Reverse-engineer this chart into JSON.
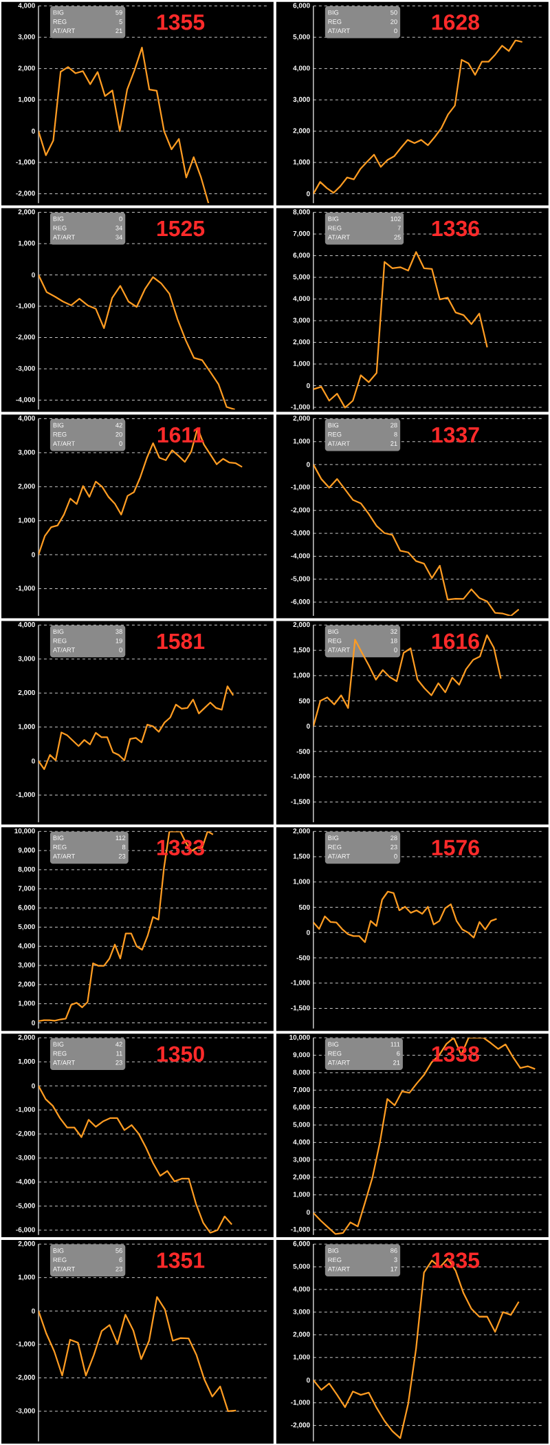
{
  "chart_data": [
    {
      "type": "line",
      "title": "1355",
      "annotations": [
        "BIG",
        "59",
        "REG",
        "5",
        "AT/ART",
        "21"
      ],
      "color": "#ff9c22",
      "grid": "y",
      "tick_labels": "y",
      "ylim": [
        -2300,
        4000
      ],
      "yticks": [
        {
          "value": -2000,
          "label": "-2,000"
        },
        {
          "value": -1000,
          "label": "-1,000"
        },
        {
          "value": 0,
          "label": "0"
        },
        {
          "value": 1000,
          "label": "1,000"
        },
        {
          "value": 2000,
          "label": "2,000"
        },
        {
          "value": 3000,
          "label": "3,000"
        },
        {
          "value": 4000,
          "label": "4,000"
        }
      ],
      "categories": [
        null,
        null,
        null,
        null,
        null,
        null,
        null,
        null,
        null,
        null,
        null,
        null,
        null,
        null,
        null,
        null,
        null,
        null,
        null,
        null,
        null,
        null,
        null,
        null,
        null,
        null,
        null,
        null,
        null,
        null,
        null,
        null
      ],
      "values": [
        0,
        -770,
        -300,
        1900,
        2050,
        1850,
        1920,
        1500,
        1890,
        1120,
        1300,
        0,
        1330,
        1950,
        2670,
        1330,
        1290,
        0,
        -580,
        -250,
        -1480,
        -830,
        -1480,
        -2300,
        null,
        null,
        null,
        null,
        null,
        null,
        null,
        null
      ]
    },
    {
      "type": "line",
      "title": "1628",
      "annotations": [
        "BIG",
        "50",
        "REG",
        "20",
        "AT/ART",
        "0"
      ],
      "color": "#ff9c22",
      "grid": "y",
      "tick_labels": "y",
      "ylim": [
        -300,
        6000
      ],
      "yticks": [
        {
          "value": 0,
          "label": "0"
        },
        {
          "value": 1000,
          "label": "1,000"
        },
        {
          "value": 2000,
          "label": "2,000"
        },
        {
          "value": 3000,
          "label": "3,000"
        },
        {
          "value": 4000,
          "label": "4,000"
        },
        {
          "value": 5000,
          "label": "5,000"
        },
        {
          "value": 6000,
          "label": "6,000"
        }
      ],
      "categories": [
        null,
        null,
        null,
        null,
        null,
        null,
        null,
        null,
        null,
        null,
        null,
        null,
        null,
        null,
        null,
        null,
        null,
        null,
        null,
        null,
        null,
        null,
        null,
        null,
        null,
        null,
        null,
        null,
        null,
        null,
        null,
        null,
        null,
        null,
        null
      ],
      "values": [
        0,
        380,
        180,
        30,
        240,
        520,
        460,
        800,
        1030,
        1250,
        860,
        1080,
        1200,
        1470,
        1720,
        1620,
        1720,
        1550,
        1810,
        2100,
        2540,
        2820,
        4280,
        4170,
        3800,
        4220,
        4220,
        4450,
        4730,
        4560,
        4900,
        4850,
        null,
        null,
        null
      ]
    },
    {
      "type": "line",
      "title": "1525",
      "annotations": [
        "BIG",
        "0",
        "REG",
        "34",
        "AT/ART",
        "34"
      ],
      "color": "#ff9c22",
      "grid": "y",
      "tick_labels": "y",
      "ylim": [
        -4300,
        2000
      ],
      "yticks": [
        {
          "value": -4000,
          "label": "-4,000"
        },
        {
          "value": -3000,
          "label": "-3,000"
        },
        {
          "value": -2000,
          "label": "-2,000"
        },
        {
          "value": -1000,
          "label": "-1,000"
        },
        {
          "value": 0,
          "label": "0"
        },
        {
          "value": 1000,
          "label": "1,000"
        },
        {
          "value": 2000,
          "label": "2,000"
        }
      ],
      "categories": [
        null,
        null,
        null,
        null,
        null,
        null,
        null,
        null,
        null,
        null,
        null,
        null,
        null,
        null,
        null,
        null,
        null,
        null,
        null,
        null,
        null,
        null,
        null,
        null,
        null,
        null,
        null,
        null,
        null
      ],
      "values": [
        0,
        -550,
        -690,
        -850,
        -970,
        -760,
        -970,
        -1080,
        -1700,
        -740,
        -350,
        -850,
        -1020,
        -460,
        -70,
        -270,
        -600,
        -1420,
        -2090,
        -2650,
        -2720,
        -3100,
        -3490,
        -4220,
        -4300,
        null,
        null,
        null,
        null
      ]
    },
    {
      "type": "line",
      "title": "1336",
      "annotations": [
        "BIG",
        "102",
        "REG",
        "7",
        "AT/ART",
        "25"
      ],
      "color": "#ff9c22",
      "grid": "y",
      "tick_labels": "y",
      "ylim": [
        -1100,
        8000
      ],
      "yticks": [
        {
          "value": -1000,
          "label": "-1,000"
        },
        {
          "value": 0,
          "label": "0"
        },
        {
          "value": 1000,
          "label": "1,000"
        },
        {
          "value": 2000,
          "label": "2,000"
        },
        {
          "value": 3000,
          "label": "3,000"
        },
        {
          "value": 4000,
          "label": "4,000"
        },
        {
          "value": 5000,
          "label": "5,000"
        },
        {
          "value": 6000,
          "label": "6,000"
        },
        {
          "value": 7000,
          "label": "7,000"
        },
        {
          "value": 8000,
          "label": "8,000"
        }
      ],
      "categories": [
        null,
        null,
        null,
        null,
        null,
        null,
        null,
        null,
        null,
        null,
        null,
        null,
        null,
        null,
        null,
        null,
        null,
        null,
        null,
        null,
        null,
        null,
        null,
        null,
        null,
        null,
        null,
        null,
        null,
        null
      ],
      "values": [
        -160,
        -50,
        -690,
        -370,
        -1010,
        -690,
        480,
        160,
        590,
        5710,
        5420,
        5470,
        5310,
        6170,
        5420,
        5390,
        3980,
        4060,
        3380,
        3260,
        2840,
        3330,
        1770,
        null,
        null,
        null,
        null,
        null,
        null,
        null
      ]
    },
    {
      "type": "line",
      "title": "1611",
      "annotations": [
        "BIG",
        "42",
        "REG",
        "20",
        "AT/ART",
        "0"
      ],
      "color": "#ff9c22",
      "grid": "y",
      "tick_labels": "y",
      "ylim": [
        -1800,
        4000
      ],
      "yticks": [
        {
          "value": -1000,
          "label": "-1,000"
        },
        {
          "value": 0,
          "label": "0"
        },
        {
          "value": 1000,
          "label": "1,000"
        },
        {
          "value": 2000,
          "label": "2,000"
        },
        {
          "value": 3000,
          "label": "3,000"
        },
        {
          "value": 4000,
          "label": "4,000"
        }
      ],
      "categories": [
        null,
        null,
        null,
        null,
        null,
        null,
        null,
        null,
        null,
        null,
        null,
        null,
        null,
        null,
        null,
        null,
        null,
        null,
        null,
        null,
        null,
        null,
        null,
        null,
        null,
        null,
        null,
        null,
        null,
        null,
        null,
        null,
        null,
        null,
        null,
        null,
        null
      ],
      "values": [
        0,
        550,
        810,
        860,
        1180,
        1650,
        1490,
        2020,
        1700,
        2150,
        2000,
        1700,
        1500,
        1180,
        1730,
        1840,
        2280,
        2830,
        3280,
        2850,
        2780,
        3070,
        2910,
        2730,
        3030,
        3720,
        3240,
        2950,
        2660,
        2820,
        2710,
        2690,
        2580,
        null,
        null,
        null,
        null
      ]
    },
    {
      "type": "line",
      "title": "1337",
      "annotations": [
        "BIG",
        "28",
        "REG",
        "8",
        "AT/ART",
        "21"
      ],
      "color": "#ff9c22",
      "grid": "y",
      "tick_labels": "y",
      "ylim": [
        -6600,
        2000
      ],
      "yticks": [
        {
          "value": -6000,
          "label": "-6,000"
        },
        {
          "value": -5000,
          "label": "-5,000"
        },
        {
          "value": -4000,
          "label": "-4,000"
        },
        {
          "value": -3000,
          "label": "-3,000"
        },
        {
          "value": -2000,
          "label": "-2,000"
        },
        {
          "value": -1000,
          "label": "-1,000"
        },
        {
          "value": 0,
          "label": "0"
        },
        {
          "value": 1000,
          "label": "1,000"
        },
        {
          "value": 2000,
          "label": "2,000"
        }
      ],
      "categories": [
        null,
        null,
        null,
        null,
        null,
        null,
        null,
        null,
        null,
        null,
        null,
        null,
        null,
        null,
        null,
        null,
        null,
        null,
        null,
        null,
        null,
        null,
        null,
        null,
        null,
        null,
        null,
        null,
        null,
        null
      ],
      "values": [
        0,
        -630,
        -1010,
        -630,
        -1080,
        -1540,
        -1690,
        -2150,
        -2680,
        -2990,
        -3070,
        -3760,
        -3830,
        -4210,
        -4320,
        -4950,
        -4410,
        -5890,
        -5850,
        -5860,
        -5440,
        -5820,
        -5970,
        -6470,
        -6500,
        -6600,
        -6320,
        null,
        null,
        null
      ]
    },
    {
      "type": "line",
      "title": "1581",
      "annotations": [
        "BIG",
        "38",
        "REG",
        "19",
        "AT/ART",
        "0"
      ],
      "color": "#ff9c22",
      "grid": "y",
      "tick_labels": "y",
      "ylim": [
        -1800,
        4000
      ],
      "yticks": [
        {
          "value": -1000,
          "label": "-1,000"
        },
        {
          "value": 0,
          "label": "0"
        },
        {
          "value": 1000,
          "label": "1,000"
        },
        {
          "value": 2000,
          "label": "2,000"
        },
        {
          "value": 3000,
          "label": "3,000"
        },
        {
          "value": 4000,
          "label": "4,000"
        }
      ],
      "categories": [
        null,
        null,
        null,
        null,
        null,
        null,
        null,
        null,
        null,
        null,
        null,
        null,
        null,
        null,
        null,
        null,
        null,
        null,
        null,
        null,
        null,
        null,
        null,
        null,
        null,
        null,
        null,
        null,
        null,
        null,
        null,
        null,
        null,
        null,
        null,
        null,
        null,
        null,
        null,
        null,
        null
      ],
      "values": [
        0,
        -240,
        180,
        20,
        840,
        760,
        600,
        440,
        620,
        490,
        830,
        700,
        700,
        260,
        180,
        20,
        650,
        680,
        550,
        1070,
        1020,
        860,
        1130,
        1280,
        1660,
        1540,
        1560,
        1810,
        1400,
        1560,
        1720,
        1560,
        1510,
        2200,
        1930,
        null,
        null,
        null,
        null,
        null,
        null
      ]
    },
    {
      "type": "line",
      "title": "1616",
      "annotations": [
        "BIG",
        "32",
        "REG",
        "18",
        "AT/ART",
        "0"
      ],
      "color": "#ff9c22",
      "grid": "y",
      "tick_labels": "y",
      "ylim": [
        -1900,
        2000
      ],
      "yticks": [
        {
          "value": -1500,
          "label": "-1,500"
        },
        {
          "value": -1000,
          "label": "-1,000"
        },
        {
          "value": -500,
          "label": "-500"
        },
        {
          "value": 0,
          "label": "0"
        },
        {
          "value": 500,
          "label": "500"
        },
        {
          "value": 1000,
          "label": "1,000"
        },
        {
          "value": 1500,
          "label": "1,500"
        },
        {
          "value": 2000,
          "label": "2,000"
        }
      ],
      "categories": [
        null,
        null,
        null,
        null,
        null,
        null,
        null,
        null,
        null,
        null,
        null,
        null,
        null,
        null,
        null,
        null,
        null,
        null,
        null,
        null,
        null,
        null,
        null,
        null,
        null,
        null,
        null,
        null,
        null,
        null,
        null,
        null,
        null,
        null
      ],
      "values": [
        0,
        500,
        570,
        430,
        610,
        360,
        1710,
        1450,
        1200,
        920,
        1110,
        970,
        890,
        1450,
        1540,
        920,
        750,
        610,
        850,
        670,
        960,
        820,
        1130,
        1310,
        1380,
        1800,
        1550,
        940,
        null,
        null,
        null,
        null,
        null,
        null
      ]
    },
    {
      "type": "line",
      "title": "1333",
      "annotations": [
        "BIG",
        "112",
        "REG",
        "8",
        "AT/ART",
        "23"
      ],
      "color": "#ff9c22",
      "grid": "y",
      "tick_labels": "y",
      "ylim": [
        -300,
        10000
      ],
      "yticks": [
        {
          "value": 0,
          "label": "0"
        },
        {
          "value": 1000,
          "label": "1,000"
        },
        {
          "value": 2000,
          "label": "2,000"
        },
        {
          "value": 3000,
          "label": "3,000"
        },
        {
          "value": 4000,
          "label": "4,000"
        },
        {
          "value": 5000,
          "label": "5,000"
        },
        {
          "value": 6000,
          "label": "6,000"
        },
        {
          "value": 7000,
          "label": "7,000"
        },
        {
          "value": 8000,
          "label": "8,000"
        },
        {
          "value": 9000,
          "label": "9,000"
        },
        {
          "value": 10000,
          "label": "10,000"
        }
      ],
      "categories": [
        null,
        null,
        null,
        null,
        null,
        null,
        null,
        null,
        null,
        null,
        null,
        null,
        null,
        null,
        null,
        null,
        null,
        null,
        null,
        null,
        null,
        null,
        null,
        null,
        null,
        null,
        null,
        null,
        null,
        null,
        null,
        null,
        null,
        null,
        null,
        null,
        null,
        null,
        null,
        null,
        null,
        null,
        null
      ],
      "values": [
        90,
        140,
        140,
        110,
        180,
        220,
        940,
        1050,
        810,
        1090,
        3110,
        2980,
        2980,
        3350,
        4090,
        3360,
        4670,
        4670,
        4000,
        3820,
        4540,
        5530,
        5390,
        8070,
        10000,
        10000,
        10000,
        9420,
        8970,
        9150,
        9130,
        10000,
        9840,
        null,
        null,
        null,
        null,
        null,
        null,
        null,
        null,
        null,
        null
      ]
    },
    {
      "type": "line",
      "title": "1576",
      "annotations": [
        "BIG",
        "28",
        "REG",
        "23",
        "AT/ART",
        "0"
      ],
      "color": "#ff9c22",
      "grid": "y",
      "tick_labels": "y",
      "ylim": [
        -1900,
        2000
      ],
      "yticks": [
        {
          "value": -1500,
          "label": "-1,500"
        },
        {
          "value": -1000,
          "label": "-1,000"
        },
        {
          "value": -500,
          "label": "-500"
        },
        {
          "value": 0,
          "label": "0"
        },
        {
          "value": 500,
          "label": "500"
        },
        {
          "value": 1000,
          "label": "1,000"
        },
        {
          "value": 1500,
          "label": "1,500"
        },
        {
          "value": 2000,
          "label": "2,000"
        }
      ],
      "categories": [
        null,
        null,
        null,
        null,
        null,
        null,
        null,
        null,
        null,
        null,
        null,
        null,
        null,
        null,
        null,
        null,
        null,
        null,
        null,
        null,
        null,
        null,
        null,
        null,
        null,
        null,
        null,
        null,
        null,
        null,
        null,
        null,
        null,
        null,
        null,
        null,
        null,
        null,
        null,
        null,
        null
      ],
      "values": [
        200,
        70,
        320,
        210,
        200,
        70,
        -30,
        -70,
        -70,
        -190,
        230,
        130,
        650,
        810,
        780,
        440,
        510,
        390,
        440,
        370,
        510,
        160,
        230,
        480,
        560,
        230,
        60,
        0,
        -100,
        210,
        60,
        230,
        270,
        null,
        null,
        null,
        null,
        null,
        null,
        null,
        null
      ]
    },
    {
      "type": "line",
      "title": "1350",
      "annotations": [
        "BIG",
        "42",
        "REG",
        "11",
        "AT/ART",
        "23"
      ],
      "color": "#ff9c22",
      "grid": "y",
      "tick_labels": "y",
      "ylim": [
        -6200,
        2000
      ],
      "yticks": [
        {
          "value": -6000,
          "label": "-6,000"
        },
        {
          "value": -5000,
          "label": "-5,000"
        },
        {
          "value": -4000,
          "label": "-4,000"
        },
        {
          "value": -3000,
          "label": "-3,000"
        },
        {
          "value": -2000,
          "label": "-2,000"
        },
        {
          "value": -1000,
          "label": "-1,000"
        },
        {
          "value": 0,
          "label": "0"
        },
        {
          "value": 1000,
          "label": "1,000"
        },
        {
          "value": 2000,
          "label": "2,000"
        }
      ],
      "categories": [
        null,
        null,
        null,
        null,
        null,
        null,
        null,
        null,
        null,
        null,
        null,
        null,
        null,
        null,
        null,
        null,
        null,
        null,
        null,
        null,
        null,
        null,
        null,
        null,
        null,
        null,
        null,
        null,
        null,
        null,
        null,
        null,
        null
      ],
      "values": [
        0,
        -550,
        -830,
        -1340,
        -1730,
        -1730,
        -2130,
        -1410,
        -1700,
        -1480,
        -1340,
        -1340,
        -1840,
        -1630,
        -1990,
        -2560,
        -3210,
        -3740,
        -3540,
        -3970,
        -3860,
        -3860,
        -4900,
        -5690,
        -6110,
        -6000,
        -5430,
        -5760,
        null,
        null,
        null,
        null,
        null
      ]
    },
    {
      "type": "line",
      "title": "1338",
      "annotations": [
        "BIG",
        "111",
        "REG",
        "6",
        "AT/ART",
        "21"
      ],
      "color": "#ff9c22",
      "grid": "y",
      "tick_labels": "y",
      "ylim": [
        -1300,
        10000
      ],
      "yticks": [
        {
          "value": -1000,
          "label": "-1,000"
        },
        {
          "value": 0,
          "label": "0"
        },
        {
          "value": 1000,
          "label": "1,000"
        },
        {
          "value": 2000,
          "label": "2,000"
        },
        {
          "value": 3000,
          "label": "3,000"
        },
        {
          "value": 4000,
          "label": "4,000"
        },
        {
          "value": 5000,
          "label": "5,000"
        },
        {
          "value": 6000,
          "label": "6,000"
        },
        {
          "value": 7000,
          "label": "7,000"
        },
        {
          "value": 8000,
          "label": "8,000"
        },
        {
          "value": 9000,
          "label": "9,000"
        },
        {
          "value": 10000,
          "label": "10,000"
        }
      ],
      "categories": [
        null,
        null,
        null,
        null,
        null,
        null,
        null,
        null,
        null,
        null,
        null,
        null,
        null,
        null,
        null,
        null,
        null,
        null,
        null,
        null,
        null,
        null,
        null,
        null,
        null,
        null,
        null,
        null,
        null,
        null,
        null,
        null
      ],
      "values": [
        -40,
        -480,
        -870,
        -1250,
        -1190,
        -580,
        -810,
        580,
        2010,
        4000,
        6490,
        6130,
        6930,
        6850,
        7390,
        7890,
        8590,
        8990,
        9650,
        10000,
        9010,
        10000,
        10000,
        10000,
        9700,
        9360,
        9620,
        8900,
        8270,
        8370,
        8210,
        null
      ]
    },
    {
      "type": "line",
      "title": "1351",
      "annotations": [
        "BIG",
        "56",
        "REG",
        "6",
        "AT/ART",
        "23"
      ],
      "color": "#ff9c22",
      "grid": "y",
      "tick_labels": "y",
      "ylim": [
        -3900,
        2000
      ],
      "yticks": [
        {
          "value": -3000,
          "label": "-3,000"
        },
        {
          "value": -2000,
          "label": "-2,000"
        },
        {
          "value": -1000,
          "label": "-1,000"
        },
        {
          "value": 0,
          "label": "0"
        },
        {
          "value": 1000,
          "label": "1,000"
        },
        {
          "value": 2000,
          "label": "2,000"
        }
      ],
      "categories": [
        null,
        null,
        null,
        null,
        null,
        null,
        null,
        null,
        null,
        null,
        null,
        null,
        null,
        null,
        null,
        null,
        null,
        null,
        null,
        null,
        null,
        null,
        null,
        null,
        null,
        null,
        null,
        null,
        null,
        null
      ],
      "values": [
        0,
        -680,
        -1210,
        -1930,
        -860,
        -950,
        -1930,
        -1320,
        -600,
        -420,
        -980,
        -110,
        -580,
        -1440,
        -890,
        420,
        50,
        -890,
        -810,
        -820,
        -1320,
        -2050,
        -2560,
        -2260,
        -3000,
        -2980,
        null,
        null,
        null,
        null
      ]
    },
    {
      "type": "line",
      "title": "1335",
      "annotations": [
        "BIG",
        "86",
        "REG",
        "3",
        "AT/ART",
        "17"
      ],
      "color": "#ff9c22",
      "grid": "y",
      "tick_labels": "y",
      "ylim": [
        -2700,
        6000
      ],
      "yticks": [
        {
          "value": -2000,
          "label": "-2,000"
        },
        {
          "value": -1000,
          "label": "-1,000"
        },
        {
          "value": 0,
          "label": "0"
        },
        {
          "value": 1000,
          "label": "1,000"
        },
        {
          "value": 2000,
          "label": "2,000"
        },
        {
          "value": 3000,
          "label": "3,000"
        },
        {
          "value": 4000,
          "label": "4,000"
        },
        {
          "value": 5000,
          "label": "5,000"
        },
        {
          "value": 6000,
          "label": "6,000"
        }
      ],
      "categories": [
        null,
        null,
        null,
        null,
        null,
        null,
        null,
        null,
        null,
        null,
        null,
        null,
        null,
        null,
        null,
        null,
        null,
        null,
        null,
        null,
        null,
        null,
        null,
        null,
        null,
        null,
        null,
        null,
        null,
        null
      ],
      "values": [
        0,
        -430,
        -150,
        -650,
        -1190,
        -500,
        -650,
        -550,
        -1220,
        -1800,
        -2250,
        -2560,
        -1040,
        1400,
        4750,
        5280,
        4980,
        5360,
        4830,
        3840,
        3150,
        2800,
        2800,
        2130,
        3000,
        2880,
        3460,
        null,
        null,
        null
      ]
    }
  ]
}
